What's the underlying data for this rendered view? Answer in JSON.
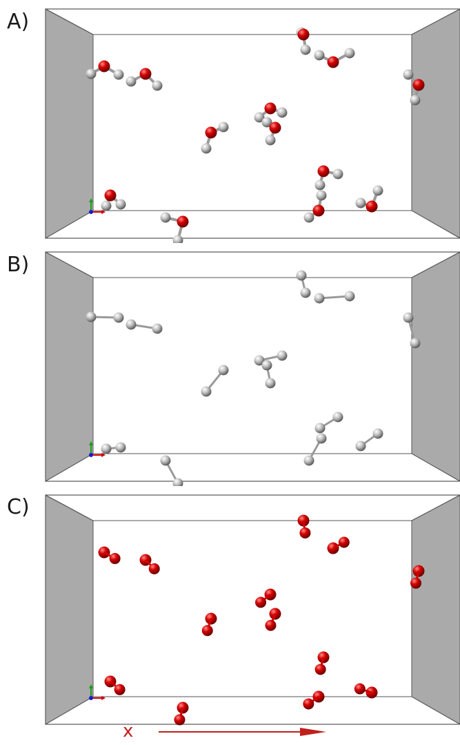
{
  "panels": [
    {
      "id": "A",
      "label": "A)",
      "show_h": true,
      "show_o": true
    },
    {
      "id": "B",
      "label": "B)",
      "show_h": true,
      "show_o": false
    },
    {
      "id": "C",
      "label": "C)",
      "show_h": false,
      "show_o": true
    }
  ],
  "axis": {
    "label": "x"
  },
  "colors": {
    "oxygen": "#d40000",
    "hydrogen": "#bdbdbd",
    "side_wall": "#aaaaaa",
    "frame_line": "#555555",
    "axis_x": "#d40000",
    "axis_y": "#18a018",
    "axis_z": "#1a1acc",
    "arrow": "#c0201c"
  },
  "molecules": [
    {
      "o": [
        151,
        96
      ],
      "h": [
        [
          132,
          107
        ],
        [
          172,
          108
        ]
      ]
    },
    {
      "o": [
        211,
        107
      ],
      "h": [
        [
          190,
          118
        ],
        [
          228,
          124
        ]
      ]
    },
    {
      "o": [
        440,
        50
      ],
      "h": [
        [
          437,
          47
        ],
        [
          443,
          72
        ]
      ]
    },
    {
      "o": [
        483,
        90
      ],
      "h": [
        [
          463,
          80
        ],
        [
          507,
          77
        ]
      ]
    },
    {
      "o": [
        607,
        123
      ],
      "h": [
        [
          592,
          108
        ],
        [
          602,
          145
        ]
      ]
    },
    {
      "o": [
        306,
        192
      ],
      "h": [
        [
          324,
          184
        ],
        [
          299,
          215
        ]
      ]
    },
    {
      "o": [
        392,
        157
      ],
      "h": [
        [
          409,
          163
        ],
        [
          376,
          170
        ]
      ]
    },
    {
      "o": [
        399,
        185
      ],
      "h": [
        [
          387,
          177
        ],
        [
          392,
          203
        ]
      ]
    },
    {
      "o": [
        469,
        248
      ],
      "h": [
        [
          490,
          252
        ],
        [
          464,
          268
        ]
      ]
    },
    {
      "o": [
        462,
        305
      ],
      "h": [
        [
          466,
          283
        ],
        [
          448,
          315
        ]
      ]
    },
    {
      "o": [
        539,
        299
      ],
      "h": [
        [
          548,
          276
        ],
        [
          523,
          294
        ]
      ]
    },
    {
      "o": [
        160,
        283
      ],
      "h": [
        [
          154,
          298
        ],
        [
          175,
          296
        ]
      ]
    },
    {
      "o": [
        265,
        321
      ],
      "h": [
        [
          240,
          315
        ],
        [
          258,
          348
        ]
      ]
    }
  ]
}
